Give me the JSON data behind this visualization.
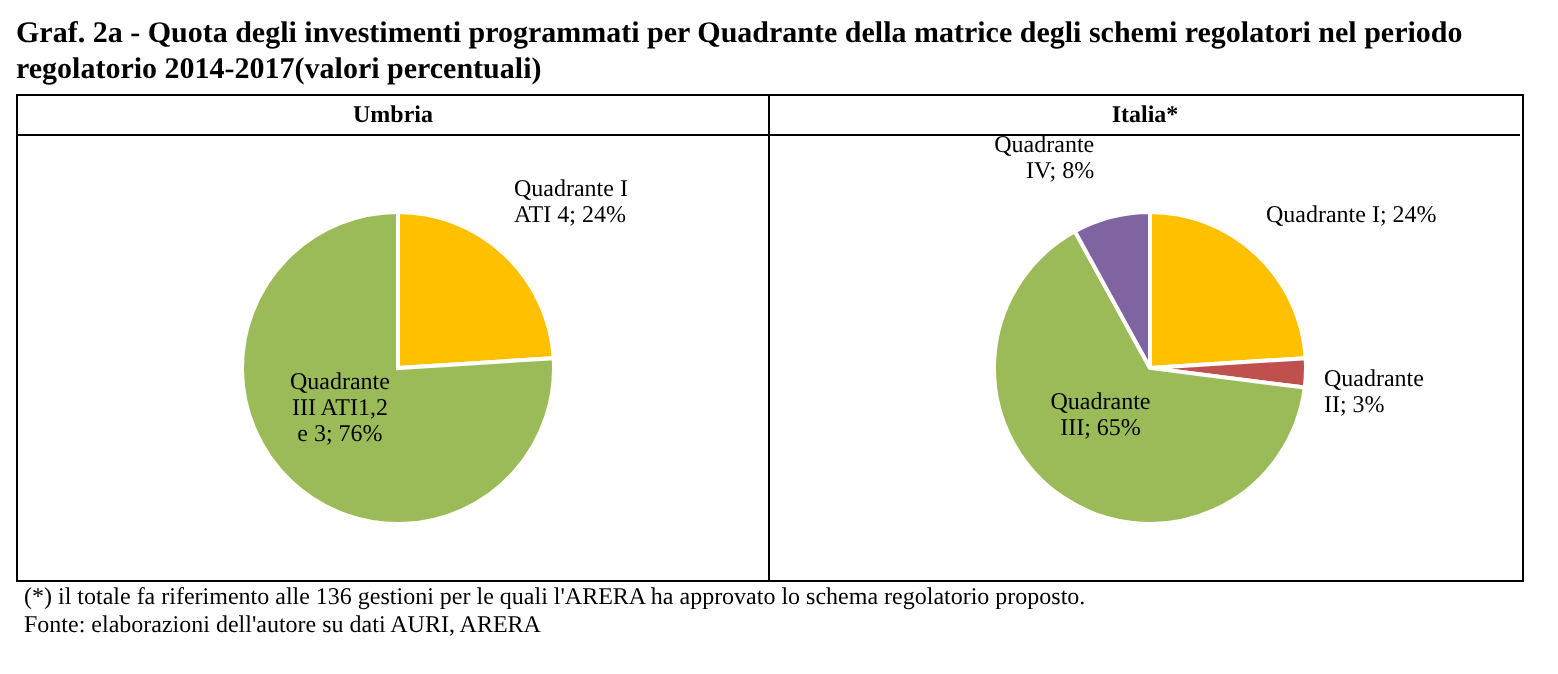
{
  "chart_data": [
    {
      "type": "pie",
      "title": "Graf. 2a - Quota degli investimenti programmati per Quadrante della matrice degli schemi regolatori nel periodo regolatorio 2014-2017(valori percentuali)",
      "subtitle": "Umbria",
      "categories": [
        "Quadrante I ATI 4",
        "Quadrante III ATI1,2 e 3"
      ],
      "values": [
        24,
        76
      ],
      "colors": [
        "#ffc000",
        "#9bbb59"
      ],
      "value_labels": [
        "; 24%",
        "; 76%"
      ]
    },
    {
      "type": "pie",
      "title": "Italia*",
      "categories": [
        "Quadrante I",
        "Quadrante II",
        "Quadrante III",
        "Quadrante IV"
      ],
      "values": [
        24,
        3,
        65,
        8
      ],
      "colors": [
        "#ffc000",
        "#c0504d",
        "#9bbb59",
        "#8064a2"
      ],
      "value_labels": [
        "; 24%",
        "; 3%",
        "; 65%",
        "; 8%"
      ],
      "annotations": [
        "(*) il totale fa riferimento alle 136 gestioni per le quali l'ARERA ha approvato lo schema regolatorio proposto.",
        "Fonte: elaborazioni dell'autore su dati AURI, ARERA"
      ]
    }
  ]
}
